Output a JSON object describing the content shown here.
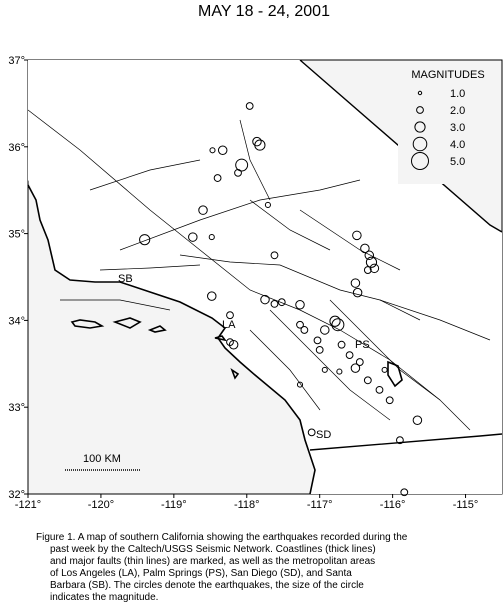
{
  "chart_data": {
    "type": "scatter",
    "title": "MAY 18 - 24, 2001",
    "xlim": [
      -121,
      -114.5
    ],
    "ylim": [
      32,
      37
    ],
    "xticks": [
      {
        "value": -121,
        "label": "-121°"
      },
      {
        "value": -120,
        "label": "-120°"
      },
      {
        "value": -119,
        "label": "-119°"
      },
      {
        "value": -118,
        "label": "-118°"
      },
      {
        "value": -117,
        "label": "-117°"
      },
      {
        "value": -116,
        "label": "-116°"
      },
      {
        "value": -115,
        "label": "-115°"
      }
    ],
    "yticks": [
      {
        "value": 32,
        "label": "32°"
      },
      {
        "value": 33,
        "label": "33°"
      },
      {
        "value": 34,
        "label": "34°"
      },
      {
        "value": 35,
        "label": "35°"
      },
      {
        "value": 36,
        "label": "36°"
      },
      {
        "value": 37,
        "label": "37°"
      }
    ],
    "legend_title": "MAGNITUDES",
    "legend_sizes": [
      {
        "value": 1,
        "label": "1.0"
      },
      {
        "value": 2,
        "label": "2.0"
      },
      {
        "value": 3,
        "label": "3.0"
      },
      {
        "value": 4,
        "label": "4.0"
      },
      {
        "value": 5,
        "label": "5.0"
      }
    ],
    "color": "#000000",
    "x": [
      -118.07,
      -117.82,
      -117.86,
      -118.33,
      -117.96,
      -118.12,
      -118.4,
      -118.47,
      -118.6,
      -118.74,
      -119.4,
      -118.48,
      -117.71,
      -116.49,
      -116.38,
      -116.32,
      -116.29,
      -116.25,
      -116.34,
      -116.51,
      -116.48,
      -117.27,
      -117.52,
      -117.62,
      -117.75,
      -118.23,
      -118.48,
      -116.75,
      -116.79,
      -116.93,
      -117.27,
      -117.03,
      -117.21,
      -116.7,
      -116.59,
      -116.51,
      -116.45,
      -116.73,
      -117.0,
      -116.34,
      -116.18,
      -116.04,
      -115.66,
      -115.9,
      -115.84,
      -118.18,
      -118.23,
      -117.11,
      -117.27,
      -116.93,
      -116.11,
      -117.62
    ],
    "y": [
      35.79,
      36.02,
      36.06,
      35.96,
      36.47,
      35.7,
      35.64,
      35.96,
      35.27,
      34.96,
      34.93,
      34.96,
      35.33,
      34.98,
      34.83,
      34.75,
      34.67,
      34.6,
      34.58,
      34.43,
      34.32,
      34.18,
      34.21,
      34.19,
      34.24,
      34.06,
      34.28,
      33.95,
      33.99,
      33.89,
      33.95,
      33.77,
      33.89,
      33.72,
      33.6,
      33.45,
      33.52,
      33.41,
      33.66,
      33.31,
      33.2,
      33.08,
      32.85,
      32.62,
      32.02,
      33.72,
      33.75,
      32.71,
      33.26,
      33.43,
      33.43,
      34.75
    ],
    "sizes": [
      3.5,
      3,
      2.5,
      2.5,
      2,
      2,
      2,
      1.5,
      2.5,
      2.5,
      3,
      1.5,
      1.5,
      2.5,
      2.5,
      2.5,
      3,
      2.5,
      2,
      2.5,
      2.5,
      2.5,
      2,
      2,
      2.5,
      2,
      2.5,
      3.5,
      3,
      2.5,
      2,
      2,
      2,
      2,
      2,
      2.5,
      2,
      1.5,
      2,
      2,
      2,
      2,
      2.5,
      2,
      2,
      2.5,
      2,
      2,
      1.5,
      1.5,
      1.5,
      2
    ]
  },
  "places": [
    "SB",
    "LA",
    "PS",
    "SD"
  ],
  "scale_bar": "100 KM",
  "caption": [
    "Figure 1. A map of southern California showing the earthquakes recorded during the",
    "past week by the Caltech/USGS Seismic Network.  Coastlines (thick lines)",
    "and major faults (thin lines) are marked, as well as the metropolitan areas",
    "of Los Angeles (LA), Palm Springs (PS), San Diego (SD), and Santa",
    "Barbara (SB).  The circles denote the earthquakes, the size of the circle",
    "indicates the magnitude."
  ]
}
